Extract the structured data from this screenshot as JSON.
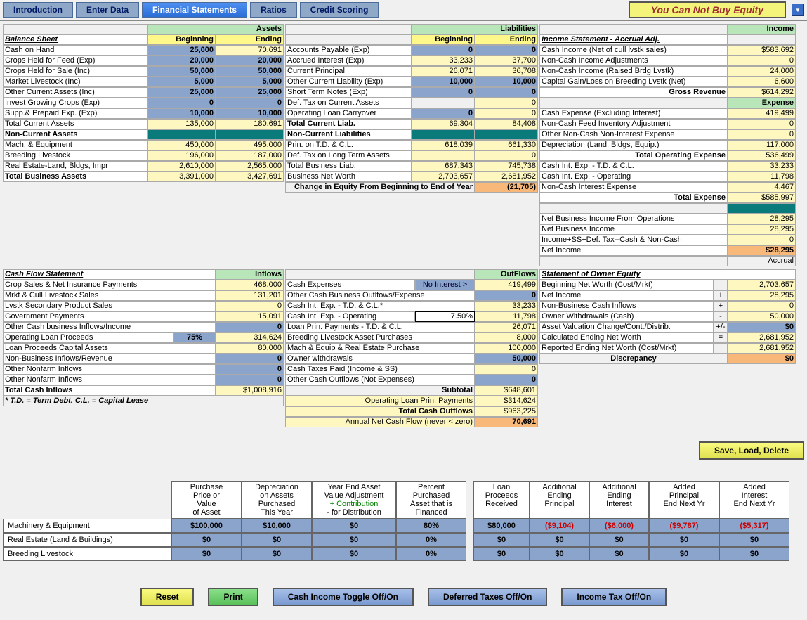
{
  "tabs": {
    "intro": "Introduction",
    "enter": "Enter Data",
    "fin": "Financial Statements",
    "ratios": "Ratios",
    "credit": "Credit Scoring"
  },
  "title": "You Can Not Buy Equity",
  "assets_hdr": "Assets",
  "liab_hdr": "Liabilities",
  "income_hdr": "Income",
  "expense_hdr": "Expense",
  "bs": {
    "title": "Balance Sheet",
    "beg": "Beginning",
    "end": "Ending",
    "rows": [
      {
        "l": "Cash on Hand",
        "b": "25,000",
        "e": "70,691",
        "bc": "blue",
        "ec": "yellow"
      },
      {
        "l": "Crops Held for Feed (Exp)",
        "b": "20,000",
        "e": "20,000",
        "bc": "blue",
        "ec": "blue"
      },
      {
        "l": "Crops Held for Sale (Inc)",
        "b": "50,000",
        "e": "50,000",
        "bc": "blue",
        "ec": "blue"
      },
      {
        "l": "Market Livestock (Inc)",
        "b": "5,000",
        "e": "5,000",
        "bc": "blue",
        "ec": "blue"
      },
      {
        "l": "Other Current Assets (Inc)",
        "b": "25,000",
        "e": "25,000",
        "bc": "blue",
        "ec": "blue"
      },
      {
        "l": "Invest Growing Crops (Exp)",
        "b": "0",
        "e": "0",
        "bc": "blue",
        "ec": "blue"
      },
      {
        "l": "Supp.& Prepaid Exp. (Exp)",
        "b": "10,000",
        "e": "10,000",
        "bc": "blue",
        "ec": "blue"
      }
    ],
    "tca": {
      "l": "Total Current Assets",
      "b": "135,000",
      "e": "180,691"
    },
    "nca_hdr": "Non-Current Assets",
    "nca": [
      {
        "l": "Mach. & Equipment",
        "b": "450,000",
        "e": "495,000"
      },
      {
        "l": "Breeding Livestock",
        "b": "196,000",
        "e": "187,000"
      },
      {
        "l": "Real Estate-Land, Bldgs, Impr",
        "b": "2,610,000",
        "e": "2,565,000"
      }
    ],
    "tba": {
      "l": "Total Business Assets",
      "b": "3,391,000",
      "e": "3,427,691"
    }
  },
  "liab": {
    "rows": [
      {
        "l": "Accounts Payable (Exp)",
        "b": "0",
        "e": "0",
        "bc": "blue",
        "ec": "blue"
      },
      {
        "l": "Accrued Interest (Exp)",
        "b": "33,233",
        "e": "37,700",
        "bc": "yellow",
        "ec": "yellow"
      },
      {
        "l": "Current Principal",
        "b": "26,071",
        "e": "36,708",
        "bc": "yellow",
        "ec": "yellow"
      },
      {
        "l": "Other Current Liability (Exp)",
        "b": "10,000",
        "e": "10,000",
        "bc": "blue",
        "ec": "blue"
      },
      {
        "l": "Short Term Notes (Exp)",
        "b": "0",
        "e": "0",
        "bc": "blue",
        "ec": "blue"
      },
      {
        "l": "Def. Tax on Current Assets",
        "b": "",
        "e": "0",
        "bc": "white",
        "ec": "yellow"
      },
      {
        "l": "Operating Loan Carryover",
        "b": "0",
        "e": "0",
        "bc": "blue",
        "ec": "yellow"
      }
    ],
    "tcl": {
      "l": "Total Current Liab.",
      "b": "69,304",
      "e": "84,408"
    },
    "ncl_hdr": "Non-Current Liabilities",
    "ncl": [
      {
        "l": "Prin. on T.D. & C.L.",
        "b": "618,039",
        "e": "661,330"
      },
      {
        "l": "Def. Tax on Long Term Assets",
        "b": "",
        "e": "0"
      },
      {
        "l": "Total Business Liab.",
        "b": "687,343",
        "e": "745,738"
      },
      {
        "l": "Business Net Worth",
        "b": "2,703,657",
        "e": "2,681,952"
      }
    ],
    "chg": {
      "l": "Change in Equity From Beginning to End of Year",
      "v": "(21,705)"
    }
  },
  "is": {
    "title": "Income Statement - Accrual Adj.",
    "rows": [
      {
        "l": "Cash Income (Net of cull lvstk sales)",
        "v": "$583,692"
      },
      {
        "l": "Non-Cash Income Adjustments",
        "v": "0"
      },
      {
        "l": "Non-Cash Income (Raised Brdg Lvstk)",
        "v": "24,000"
      },
      {
        "l": "Capital Gain/Loss on Breeding Lvstk (Net)",
        "v": "6,600"
      }
    ],
    "gr": {
      "l": "Gross Revenue",
      "v": "$614,292"
    },
    "exp": [
      {
        "l": "Cash Expense (Excluding Interest)",
        "v": "419,499"
      },
      {
        "l": "Non-Cash Feed Inventory Adjustment",
        "v": "0"
      },
      {
        "l": "Other Non-Cash Non-Interest Expense",
        "v": "0"
      },
      {
        "l": "Depreciation (Land, Bldgs, Equip.)",
        "v": "117,000"
      }
    ],
    "toe": {
      "l": "Total Operating Expense",
      "v": "536,499"
    },
    "int": [
      {
        "l": "Cash Int. Exp. - T.D. & C.L.",
        "v": "33,233"
      },
      {
        "l": "Cash Int. Exp. - Operating",
        "v": "11,798"
      },
      {
        "l": "Non-Cash Interest Expense",
        "v": "4,467"
      }
    ],
    "te": {
      "l": "Total Expense",
      "v": "$585,997"
    },
    "net": [
      {
        "l": "Net Business Income From Operations",
        "v": "28,295"
      },
      {
        "l": "Net Business Income",
        "v": "28,295"
      },
      {
        "l": "Income+SS+Def. Tax--Cash & Non-Cash",
        "v": "0"
      },
      {
        "l": "Net Income",
        "v": "$28,295",
        "orange": true
      }
    ],
    "accrual": "Accrual"
  },
  "cf": {
    "title": "Cash Flow Statement",
    "inflows_hdr": "Inflows",
    "outflows_hdr": "OutFlows",
    "in": [
      {
        "l": "Crop Sales & Net Insurance Payments",
        "v": "468,000"
      },
      {
        "l": "Mrkt & Cull Livestock Sales",
        "v": "131,201"
      },
      {
        "l": "Lvstk Secondary Product Sales",
        "v": "0"
      },
      {
        "l": "Government Payments",
        "v": "15,091"
      },
      {
        "l": "Other Cash business Inflows/Income",
        "v": "0",
        "blue": true
      },
      {
        "l": "Operating Loan Proceeds",
        "pct": "75%",
        "v": "314,624"
      },
      {
        "l": "Loan Proceeds Capital Assets",
        "v": "80,000"
      },
      {
        "l": "Non-Business Inflows/Revenue",
        "v": "0",
        "blue": true
      },
      {
        "l": "Other Nonfarm Inflows",
        "v": "0",
        "blue": true
      },
      {
        "l": "Other Nonfarm Inflows",
        "v": "0",
        "blue": true
      }
    ],
    "tci": {
      "l": "Total Cash Inflows",
      "v": "$1,008,916"
    },
    "note": "* T.D. = Term Debt. C.L. = Capital Lease",
    "out": [
      {
        "l": "Cash Expenses",
        "btn": "No Interest >",
        "v": "419,499"
      },
      {
        "l": "Other Cash Business Outlfows/Expense",
        "v": "0",
        "blue": true
      },
      {
        "l": "Cash Int. Exp. - T.D. & C.L.*",
        "v": "33,233"
      },
      {
        "l": "Cash Int. Exp. - Operating",
        "pct": "7.50%",
        "v": "11,798"
      },
      {
        "l": "Loan Prin. Payments - T.D. & C.L.",
        "v": "26,071"
      },
      {
        "l": "Breeding Livestock Asset Purchases",
        "v": "8,000"
      },
      {
        "l": "Mach & Equip & Real Estate Purchase",
        "v": "100,000"
      },
      {
        "l": "Owner withdrawals",
        "v": "50,000",
        "blue": true
      },
      {
        "l": "Cash Taxes Paid (Income & SS)",
        "v": "0"
      },
      {
        "l": "Other Cash Outflows (Not Expenses)",
        "v": "0",
        "blue": true
      }
    ],
    "sub": {
      "l": "Subtotal",
      "v": "$648,601"
    },
    "olp": {
      "l": "Operating Loan Prin. Payments",
      "v": "$314,624"
    },
    "tco": {
      "l": "Total Cash Outflows",
      "v": "$963,225"
    },
    "anc": {
      "l": "Annual Net Cash Flow (never < zero)",
      "v": "70,691"
    }
  },
  "oe": {
    "title": "Statement of Owner Equity",
    "rows": [
      {
        "l": "Beginning Net Worth (Cost/Mrkt)",
        "s": "",
        "v": "2,703,657"
      },
      {
        "l": "Net Income",
        "s": "+",
        "v": "28,295"
      },
      {
        "l": "Non-Business Cash Inflows",
        "s": "+",
        "v": "0"
      },
      {
        "l": "Owner Withdrawals (Cash)",
        "s": "-",
        "v": "50,000"
      },
      {
        "l": "Asset Valuation Change/Cont./Distrib.",
        "s": "+/-",
        "v": "$0",
        "blue": true
      },
      {
        "l": "Calculated Ending Net Worth",
        "s": "=",
        "v": "2,681,952"
      },
      {
        "l": "Reported Ending Net Worth (Cost/Mrkt)",
        "s": "",
        "v": "2,681,952"
      }
    ],
    "disc": {
      "l": "Discrepancy",
      "v": "$0"
    }
  },
  "save_btn": "Save, Load, Delete",
  "lt": {
    "hdrs": [
      [
        "Purchase",
        "Price or",
        "Value",
        "of Asset"
      ],
      [
        "Depreciation",
        "on Assets",
        "Purchased",
        "This Year"
      ],
      [
        "Year End Asset",
        "Value Adjustment",
        "+ Contribution",
        "- for Distribution"
      ],
      [
        "Percent",
        "Purchased",
        "Asset that is",
        "Financed"
      ],
      [
        "Loan",
        "Proceeds",
        "Received"
      ],
      [
        "Additional",
        "Ending",
        "Principal"
      ],
      [
        "Additional",
        "Ending",
        "Interest"
      ],
      [
        "Added",
        "Principal",
        "End Next Yr"
      ],
      [
        "Added",
        "Interest",
        "End Next Yr"
      ]
    ],
    "rows": [
      {
        "l": "Machinery & Equipment",
        "v": [
          "$100,000",
          "$10,000",
          "$0",
          "80%",
          "$80,000",
          "($9,104)",
          "($6,000)",
          "($9,787)",
          "($5,317)"
        ]
      },
      {
        "l": "Real Estate (Land & Buildings)",
        "v": [
          "$0",
          "$0",
          "$0",
          "0%",
          "$0",
          "$0",
          "$0",
          "$0",
          "$0"
        ]
      },
      {
        "l": "Breeding Livestock",
        "v": [
          "$0",
          "$0",
          "$0",
          "0%",
          "$0",
          "$0",
          "$0",
          "$0",
          "$0"
        ]
      }
    ]
  },
  "btns": {
    "reset": "Reset",
    "print": "Print",
    "cash": "Cash Income Toggle Off/On",
    "def": "Deferred Taxes Off/On",
    "inc": "Income Tax Off/On"
  }
}
